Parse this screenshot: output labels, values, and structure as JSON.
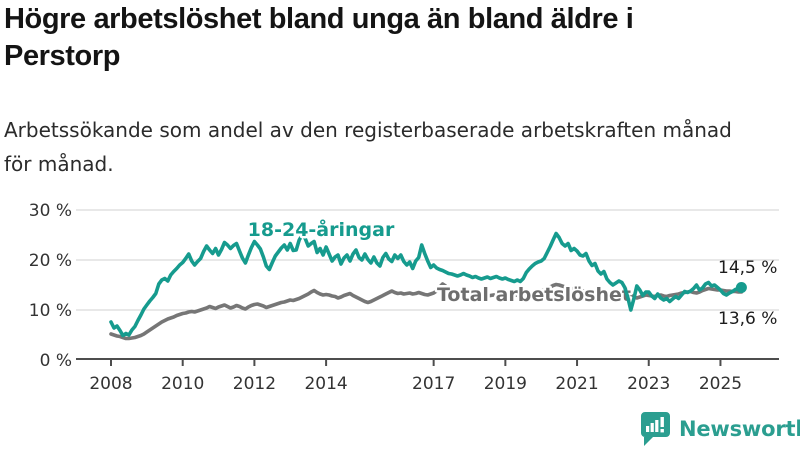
{
  "title_lines": [
    "Högre arbetslöshet bland unga än bland äldre i",
    "Perstorp"
  ],
  "subtitle_lines": [
    "Arbetssökande som andel av den registerbaserade arbetskraften månad",
    "för månad."
  ],
  "footer": {
    "brand": "Newsworthy"
  },
  "colors": {
    "young_line": "#169b8e",
    "total_line": "#767676",
    "grid": "#d9d9d9",
    "axis": "#4d4d4d",
    "brand_teal": "#2b9e90"
  },
  "chart_data": {
    "type": "line",
    "title": "Högre arbetslöshet bland unga än bland äldre i Perstorp",
    "subtitle": "Arbetssökande som andel av den registerbaserade arbetskraften månad för månad.",
    "x_start": 2008,
    "x_step_years": 0.0833333,
    "x_end": 2025.583,
    "ylim": [
      0,
      32
    ],
    "grid": "horizontal",
    "legend_position": "inline-labels",
    "y_axis": {
      "ticks": [
        {
          "value": 0,
          "label": "0 %"
        },
        {
          "value": 10,
          "label": "10 %"
        },
        {
          "value": 20,
          "label": "20 %"
        },
        {
          "value": 30,
          "label": "30 %"
        }
      ]
    },
    "x_axis": {
      "ticks": [
        {
          "value": 2008,
          "label": "2008"
        },
        {
          "value": 2010,
          "label": "2010"
        },
        {
          "value": 2012,
          "label": "2012"
        },
        {
          "value": 2014,
          "label": "2014"
        },
        {
          "value": 2017,
          "label": "2017"
        },
        {
          "value": 2019,
          "label": "2019"
        },
        {
          "value": 2021,
          "label": "2021"
        },
        {
          "value": 2023,
          "label": "2023"
        },
        {
          "value": 2025,
          "label": "2025"
        }
      ]
    },
    "series": [
      {
        "name": "18-24-åringar",
        "color": "#169b8e",
        "end_label": "14,5 %",
        "end_value": 14.5,
        "values": [
          7.6,
          6.4,
          6.8,
          5.9,
          4.9,
          5.3,
          5.0,
          6.0,
          6.7,
          7.9,
          9.0,
          10.2,
          11.0,
          11.8,
          12.5,
          13.3,
          15.2,
          16.0,
          16.3,
          15.8,
          17.0,
          17.7,
          18.3,
          19.0,
          19.5,
          20.3,
          21.2,
          19.8,
          19.0,
          19.7,
          20.3,
          21.7,
          22.8,
          22.0,
          21.3,
          22.3,
          21.0,
          22.1,
          23.5,
          23.0,
          22.3,
          22.9,
          23.3,
          21.8,
          20.4,
          19.4,
          21.0,
          22.5,
          23.7,
          23.0,
          22.2,
          20.6,
          18.8,
          18.1,
          19.5,
          20.8,
          21.6,
          22.4,
          23.0,
          22.0,
          23.3,
          21.9,
          22.0,
          24.0,
          25.0,
          24.3,
          22.8,
          23.3,
          23.7,
          21.5,
          22.3,
          21.0,
          22.6,
          21.2,
          19.8,
          20.6,
          21.0,
          19.2,
          20.4,
          21.0,
          19.8,
          21.2,
          22.0,
          20.5,
          20.0,
          21.2,
          20.1,
          19.4,
          20.6,
          19.4,
          18.8,
          20.5,
          21.3,
          20.2,
          19.7,
          21.0,
          20.3,
          21.0,
          19.7,
          19.0,
          19.6,
          18.3,
          19.8,
          20.5,
          23.0,
          21.3,
          19.8,
          18.5,
          19.0,
          18.4,
          18.1,
          17.9,
          17.6,
          17.3,
          17.2,
          17.0,
          16.8,
          17.0,
          17.3,
          17.0,
          16.8,
          16.5,
          16.7,
          16.4,
          16.2,
          16.4,
          16.6,
          16.3,
          16.5,
          16.7,
          16.4,
          16.2,
          16.4,
          16.1,
          15.9,
          15.7,
          16.0,
          15.7,
          16.3,
          17.5,
          18.2,
          18.8,
          19.3,
          19.6,
          19.8,
          20.3,
          21.5,
          22.7,
          24.0,
          25.3,
          24.5,
          23.3,
          22.8,
          23.3,
          21.9,
          22.3,
          21.8,
          21.0,
          20.8,
          21.3,
          19.8,
          18.9,
          19.3,
          17.8,
          17.2,
          17.7,
          16.2,
          15.5,
          15.0,
          15.4,
          15.8,
          15.5,
          14.5,
          12.5,
          10.0,
          12.2,
          14.8,
          14.0,
          12.9,
          13.6,
          13.6,
          12.8,
          12.3,
          13.2,
          12.4,
          12.0,
          12.3,
          11.7,
          12.2,
          12.7,
          12.3,
          13.0,
          13.7,
          13.5,
          13.8,
          14.3,
          15.0,
          14.0,
          14.4,
          15.2,
          15.5,
          14.8,
          15.0,
          14.5,
          14.0,
          13.3,
          13.0,
          13.4,
          13.7,
          14.1,
          14.3,
          14.5
        ]
      },
      {
        "name": "Total arbetslöshet",
        "color": "#767676",
        "end_label": "13,6 %",
        "end_value": 13.6,
        "values": [
          5.2,
          5.0,
          4.8,
          4.7,
          4.5,
          4.3,
          4.3,
          4.4,
          4.5,
          4.7,
          4.9,
          5.2,
          5.6,
          6.0,
          6.4,
          6.8,
          7.2,
          7.6,
          7.9,
          8.2,
          8.4,
          8.6,
          8.9,
          9.1,
          9.3,
          9.4,
          9.6,
          9.7,
          9.6,
          9.8,
          10.0,
          10.2,
          10.4,
          10.7,
          10.5,
          10.3,
          10.6,
          10.8,
          11.0,
          10.7,
          10.4,
          10.6,
          10.9,
          10.7,
          10.4,
          10.2,
          10.6,
          10.9,
          11.1,
          11.2,
          11.0,
          10.8,
          10.5,
          10.7,
          10.9,
          11.1,
          11.3,
          11.5,
          11.6,
          11.8,
          12.0,
          11.9,
          12.1,
          12.3,
          12.6,
          12.9,
          13.2,
          13.6,
          13.9,
          13.5,
          13.2,
          13.0,
          13.1,
          13.0,
          12.8,
          12.7,
          12.4,
          12.6,
          12.9,
          13.1,
          13.3,
          12.9,
          12.6,
          12.3,
          12.0,
          11.7,
          11.5,
          11.7,
          12.0,
          12.3,
          12.6,
          12.9,
          13.2,
          13.5,
          13.8,
          13.5,
          13.3,
          13.4,
          13.2,
          13.3,
          13.4,
          13.2,
          13.3,
          13.5,
          13.3,
          13.1,
          13.0,
          13.2,
          13.4,
          13.8,
          14.6,
          15.2,
          14.8,
          14.2,
          13.8,
          13.5,
          13.3,
          13.3,
          13.4,
          13.4,
          13.4,
          13.3,
          13.2,
          13.1,
          13.0,
          12.9,
          12.8,
          12.9,
          13.0,
          13.1,
          13.2,
          13.2,
          13.2,
          13.1,
          13.0,
          12.9,
          13.0,
          13.1,
          13.2,
          13.3,
          13.4,
          13.5,
          13.6,
          13.7,
          13.8,
          14.0,
          14.3,
          14.6,
          14.9,
          15.1,
          15.0,
          14.8,
          14.6,
          14.5,
          14.3,
          14.2,
          14.0,
          13.9,
          13.8,
          13.7,
          13.6,
          13.5,
          13.4,
          13.3,
          13.2,
          13.1,
          13.0,
          13.0,
          13.1,
          13.2,
          13.2,
          13.3,
          13.3,
          13.3,
          13.0,
          12.7,
          12.4,
          12.6,
          12.8,
          13.0,
          12.9,
          12.8,
          12.7,
          12.9,
          13.0,
          12.8,
          12.7,
          12.9,
          13.0,
          13.1,
          13.2,
          13.4,
          13.5,
          13.6,
          13.7,
          13.5,
          13.4,
          13.6,
          13.9,
          14.1,
          14.3,
          14.2,
          14.1,
          14.0,
          14.0,
          13.9,
          13.8,
          13.8,
          13.7,
          13.7,
          13.6,
          13.6
        ]
      }
    ]
  }
}
